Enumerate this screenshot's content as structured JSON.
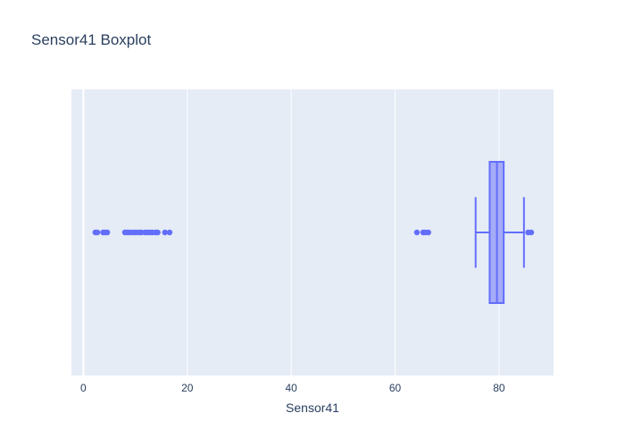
{
  "chart_data": {
    "type": "box",
    "title": "Sensor41 Boxplot",
    "xlabel": "Sensor41",
    "ylabel": "",
    "orientation": "horizontal",
    "xlim": [
      -2.3,
      90.5
    ],
    "x_ticks": [
      0,
      20,
      40,
      60,
      80
    ],
    "x_tick_labels": [
      "0",
      "20",
      "40",
      "60",
      "80"
    ],
    "grid": true,
    "series": [
      {
        "lower_fence": 75.5,
        "q1": 78.2,
        "median": 79.6,
        "q3": 80.9,
        "upper_fence": 84.8,
        "outliers": [
          2.3,
          2.7,
          3.8,
          4.2,
          4.6,
          8.0,
          8.5,
          9.0,
          9.6,
          10.1,
          10.7,
          11.2,
          11.9,
          12.3,
          12.8,
          13.3,
          13.9,
          14.3,
          15.7,
          16.6,
          64.2,
          65.4,
          65.8,
          66.4,
          85.6,
          86.2
        ]
      }
    ],
    "colors": {
      "box_line": "#636efa",
      "box_fill": "#a5abf7",
      "plot_bg": "#e5ecf6",
      "grid": "#ffffff",
      "text": "#2a3f5f"
    }
  }
}
